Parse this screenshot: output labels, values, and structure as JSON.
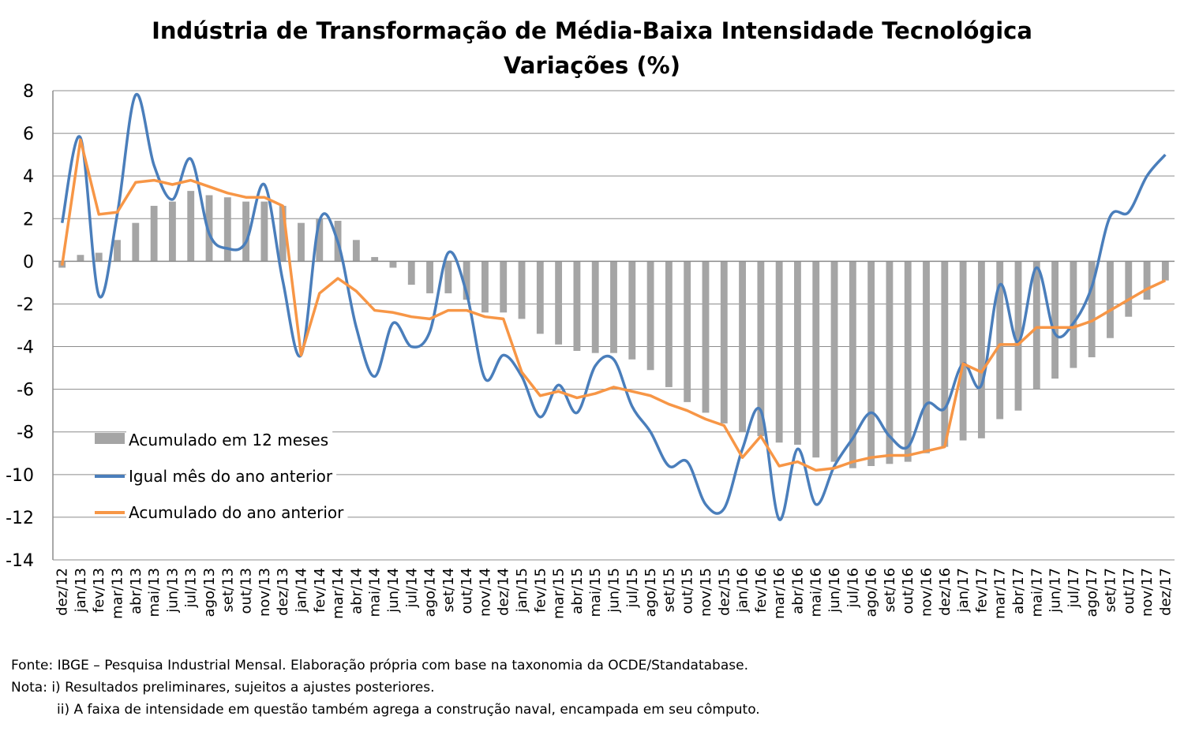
{
  "chart_data": {
    "type": "bar+line",
    "title": "Indústria de Transformação de Média-Baixa Intensidade Tecnológica",
    "subtitle": "Variações (%)",
    "ylim": [
      -14,
      8
    ],
    "yticks": [
      8,
      6,
      4,
      2,
      0,
      -2,
      -4,
      -6,
      -8,
      -10,
      -12,
      -14
    ],
    "grid": true,
    "legend_position": "bottom-left",
    "categories": [
      "dez/12",
      "jan/13",
      "fev/13",
      "mar/13",
      "abr/13",
      "mai/13",
      "jun/13",
      "jul/13",
      "ago/13",
      "set/13",
      "out/13",
      "nov/13",
      "dez/13",
      "jan/14",
      "fev/14",
      "mar/14",
      "abr/14",
      "mai/14",
      "jun/14",
      "jul/14",
      "ago/14",
      "set/14",
      "out/14",
      "nov/14",
      "dez/14",
      "jan/15",
      "fev/15",
      "mar/15",
      "abr/15",
      "mai/15",
      "jun/15",
      "jul/15",
      "ago/15",
      "set/15",
      "out/15",
      "nov/15",
      "dez/15",
      "jan/16",
      "fev/16",
      "mar/16",
      "abr/16",
      "mai/16",
      "jun/16",
      "jul/16",
      "ago/16",
      "set/16",
      "out/16",
      "nov/16",
      "dez/16",
      "jan/17",
      "fev/17",
      "mar/17",
      "abr/17",
      "mai/17",
      "jun/17",
      "jul/17",
      "ago/17",
      "set/17",
      "out/17",
      "nov/17",
      "dez/17"
    ],
    "series": [
      {
        "name": "Acumulado em 12 meses",
        "kind": "bar",
        "color": "#a5a5a5",
        "values": [
          -0.3,
          0.3,
          0.4,
          1.0,
          1.8,
          2.6,
          2.8,
          3.3,
          3.1,
          3.0,
          2.8,
          2.8,
          2.6,
          1.8,
          2.0,
          1.9,
          1.0,
          0.2,
          -0.3,
          -1.1,
          -1.5,
          -1.5,
          -1.8,
          -2.4,
          -2.4,
          -2.7,
          -3.4,
          -3.9,
          -4.2,
          -4.3,
          -4.3,
          -4.6,
          -5.1,
          -5.9,
          -6.6,
          -7.1,
          -7.6,
          -8.0,
          -8.2,
          -8.5,
          -8.6,
          -9.2,
          -9.4,
          -9.7,
          -9.6,
          -9.5,
          -9.4,
          -9.0,
          -8.7,
          -8.4,
          -8.3,
          -7.4,
          -7.0,
          -6.0,
          -5.5,
          -5.0,
          -4.5,
          -3.6,
          -2.6,
          -1.8,
          -0.9
        ]
      },
      {
        "name": "Igual mês do ano anterior",
        "kind": "line",
        "color": "#4a7ebb",
        "values": [
          1.8,
          5.8,
          -1.6,
          2.2,
          7.8,
          4.5,
          2.9,
          4.8,
          1.3,
          0.6,
          0.9,
          3.6,
          -0.9,
          -4.4,
          1.9,
          0.9,
          -3.1,
          -5.4,
          -2.9,
          -4.0,
          -3.3,
          0.4,
          -1.5,
          -5.5,
          -4.4,
          -5.4,
          -7.3,
          -5.8,
          -7.1,
          -4.9,
          -4.6,
          -6.8,
          -8.0,
          -9.6,
          -9.4,
          -11.4,
          -11.6,
          -8.8,
          -7.0,
          -12.1,
          -8.8,
          -11.4,
          -9.6,
          -8.3,
          -7.1,
          -8.2,
          -8.7,
          -6.7,
          -6.9,
          -4.8,
          -5.8,
          -1.1,
          -3.8,
          -0.3,
          -3.4,
          -2.9,
          -1.2,
          2.1,
          2.3,
          4.0,
          5.0
        ]
      },
      {
        "name": "Acumulado do ano anterior",
        "kind": "line",
        "color": "#f79646",
        "values": [
          -0.2,
          5.7,
          2.2,
          2.3,
          3.7,
          3.8,
          3.6,
          3.8,
          3.5,
          3.2,
          3.0,
          3.0,
          2.6,
          -4.4,
          -1.5,
          -0.8,
          -1.4,
          -2.3,
          -2.4,
          -2.6,
          -2.7,
          -2.3,
          -2.3,
          -2.6,
          -2.7,
          -5.2,
          -6.3,
          -6.1,
          -6.4,
          -6.2,
          -5.9,
          -6.1,
          -6.3,
          -6.7,
          -7.0,
          -7.4,
          -7.7,
          -9.2,
          -8.2,
          -9.6,
          -9.4,
          -9.8,
          -9.7,
          -9.4,
          -9.2,
          -9.1,
          -9.1,
          -8.9,
          -8.7,
          -4.8,
          -5.2,
          -3.9,
          -3.9,
          -3.1,
          -3.1,
          -3.1,
          -2.8,
          -2.3,
          -1.8,
          -1.3,
          -0.9
        ]
      }
    ]
  },
  "footnotes": {
    "source": "Fonte: IBGE – Pesquisa Industrial Mensal. Elaboração própria com base na taxonomia da OCDE/Standatabase.",
    "note1": "Nota: i) Resultados preliminares, sujeitos a ajustes posteriores.",
    "note2": "ii) A faixa de intensidade em questão também agrega a construção naval, encampada em seu cômputo."
  }
}
